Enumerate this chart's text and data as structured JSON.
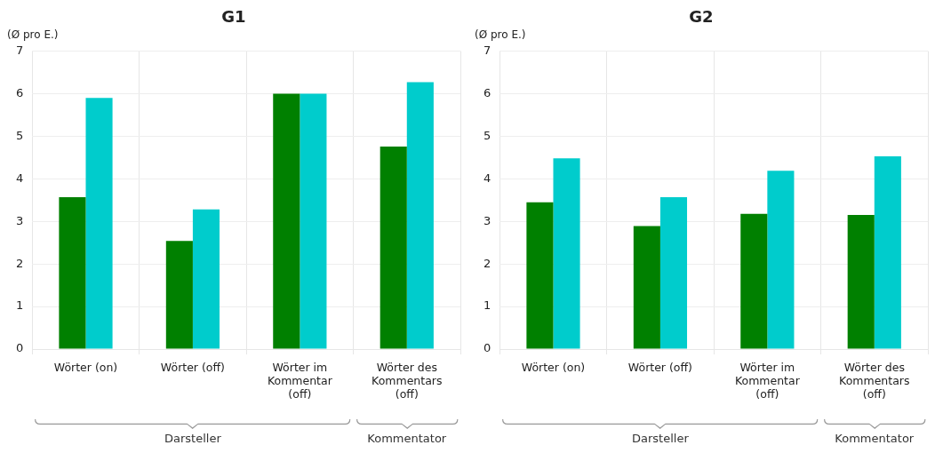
{
  "chart_data": [
    {
      "type": "bar",
      "title": "G1",
      "ylabel": "(Ø pro E.)",
      "categories": [
        "Wörter (on)",
        "Wörter (off)",
        "Wörter im Kommentar (off)",
        "Wörter des Kommentars (off)"
      ],
      "series": [
        {
          "color": "#008000",
          "values": [
            3.57,
            2.54,
            6.0,
            4.76
          ]
        },
        {
          "color": "#00cccc",
          "values": [
            5.9,
            3.28,
            6.0,
            6.27
          ]
        }
      ],
      "ylim": [
        0,
        7
      ],
      "yticks": [
        0,
        1,
        2,
        3,
        4,
        5,
        6,
        7
      ],
      "grid": true,
      "legend": false,
      "annotations": [
        "Darsteller",
        "Kommentator"
      ]
    },
    {
      "type": "bar",
      "title": "G2",
      "ylabel": "(Ø pro E.)",
      "categories": [
        "Wörter (on)",
        "Wörter (off)",
        "Wörter im Kommentar (off)",
        "Wörter des Kommentars (off)"
      ],
      "series": [
        {
          "color": "#008000",
          "values": [
            3.45,
            2.89,
            3.18,
            3.15
          ]
        },
        {
          "color": "#00cccc",
          "values": [
            4.48,
            3.57,
            4.19,
            4.53
          ]
        }
      ],
      "ylim": [
        0,
        7
      ],
      "yticks": [
        0,
        1,
        2,
        3,
        4,
        5,
        6,
        7
      ],
      "grid": true,
      "legend": false,
      "annotations": [
        "Darsteller",
        "Kommentator"
      ]
    }
  ]
}
